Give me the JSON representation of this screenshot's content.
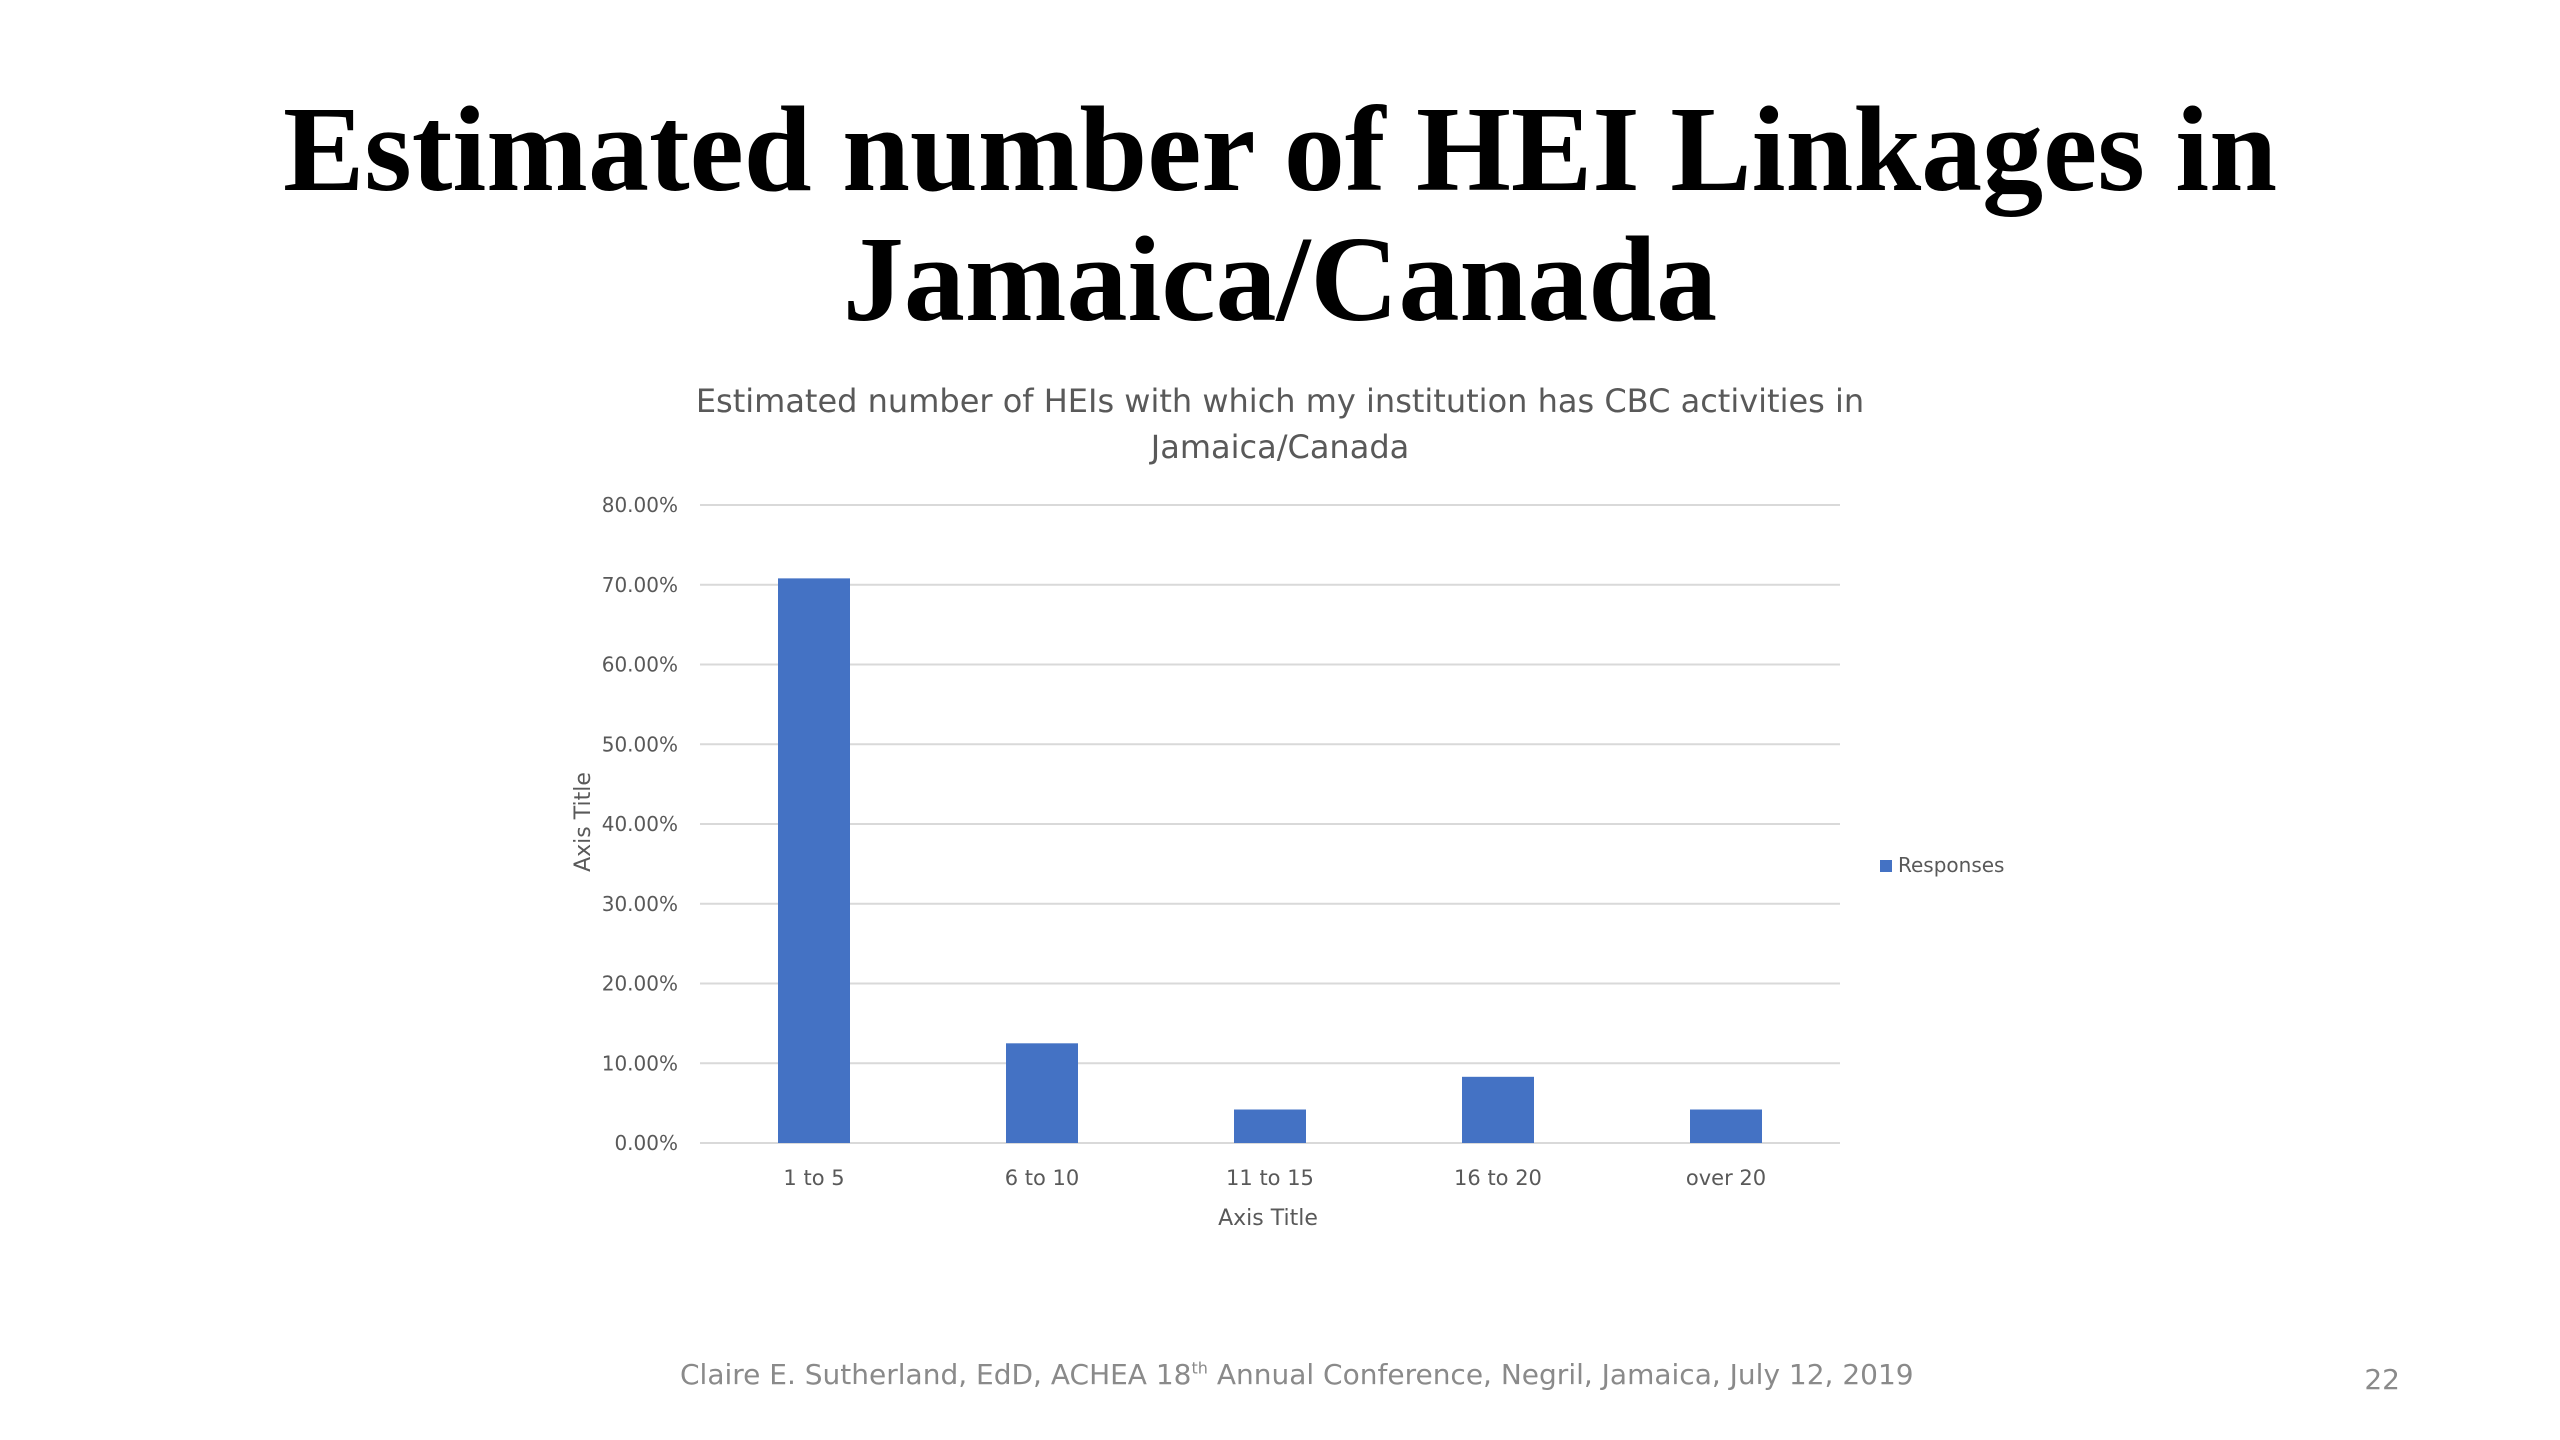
{
  "slide": {
    "title_line1": "Estimated number of HEI Linkages in",
    "title_line2": "Jamaica/Canada",
    "footer_pre": "Claire E. Sutherland, EdD, ACHEA 18",
    "footer_sup": "th",
    "footer_post": " Annual Conference, Negril, Jamaica, July 12, 2019",
    "page_number": "22"
  },
  "chart_data": {
    "type": "bar",
    "title_line1": "Estimated number of HEIs with which my institution has CBC activities in",
    "title_line2": "Jamaica/Canada",
    "categories": [
      "1 to 5",
      "6 to 10",
      "11 to 15",
      "16 to 20",
      "over 20"
    ],
    "series": [
      {
        "name": "Responses",
        "values": [
          70.8,
          12.5,
          4.2,
          8.3,
          4.2
        ]
      }
    ],
    "yticks": [
      "0.00%",
      "10.00%",
      "20.00%",
      "30.00%",
      "40.00%",
      "50.00%",
      "60.00%",
      "70.00%",
      "80.00%"
    ],
    "xlabel": "Axis Title",
    "ylabel": "Axis Title",
    "ylim": [
      0,
      80
    ],
    "grid": true,
    "legend": "right",
    "colors": {
      "bar": "#4472C4",
      "grid": "#d9d9d9",
      "text": "#595959"
    }
  }
}
